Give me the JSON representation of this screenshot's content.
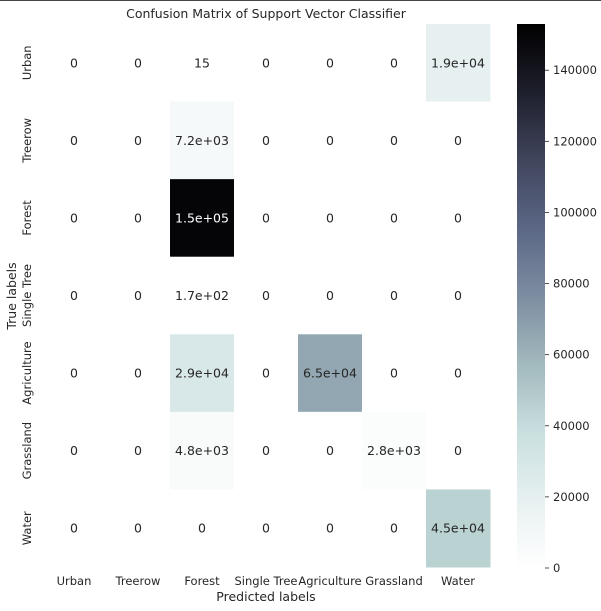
{
  "chart_data": {
    "type": "heatmap",
    "title": "Confusion Matrix of Support Vector Classifier",
    "xlabel": "Predicted labels",
    "ylabel": "True labels",
    "x_categories": [
      "Urban",
      "Treerow",
      "Forest",
      "Single Tree",
      "Agriculture",
      "Grassland",
      "Water"
    ],
    "y_categories": [
      "Urban",
      "Treerow",
      "Forest",
      "Single Tree",
      "Agriculture",
      "Grassland",
      "Water"
    ],
    "values": [
      [
        0,
        0,
        15,
        0,
        0,
        0,
        19000
      ],
      [
        0,
        0,
        7200,
        0,
        0,
        0,
        0
      ],
      [
        0,
        0,
        150000,
        0,
        0,
        0,
        0
      ],
      [
        0,
        0,
        170,
        0,
        0,
        0,
        0
      ],
      [
        0,
        0,
        29000,
        0,
        65000,
        0,
        0
      ],
      [
        0,
        0,
        4800,
        0,
        0,
        2800,
        0
      ],
      [
        0,
        0,
        0,
        0,
        0,
        0,
        45000
      ]
    ],
    "annotations": [
      [
        "0",
        "0",
        "15",
        "0",
        "0",
        "0",
        "1.9e+04"
      ],
      [
        "0",
        "0",
        "7.2e+03",
        "0",
        "0",
        "0",
        "0"
      ],
      [
        "0",
        "0",
        "1.5e+05",
        "0",
        "0",
        "0",
        "0"
      ],
      [
        "0",
        "0",
        "1.7e+02",
        "0",
        "0",
        "0",
        "0"
      ],
      [
        "0",
        "0",
        "2.9e+04",
        "0",
        "6.5e+04",
        "0",
        "0"
      ],
      [
        "0",
        "0",
        "4.8e+03",
        "0",
        "0",
        "2.8e+03",
        "0"
      ],
      [
        "0",
        "0",
        "0",
        "0",
        "0",
        "0",
        "4.5e+04"
      ]
    ],
    "colormap": "bone_r",
    "vmin": 0,
    "vmax": 153000,
    "colorbar_ticks": [
      0,
      20000,
      40000,
      60000,
      80000,
      100000,
      120000,
      140000
    ],
    "colorbar_tick_labels": [
      "0",
      "20000",
      "40000",
      "60000",
      "80000",
      "100000",
      "120000",
      "140000"
    ],
    "text_color_dark": "#262626",
    "text_color_light": "#ffffff"
  }
}
